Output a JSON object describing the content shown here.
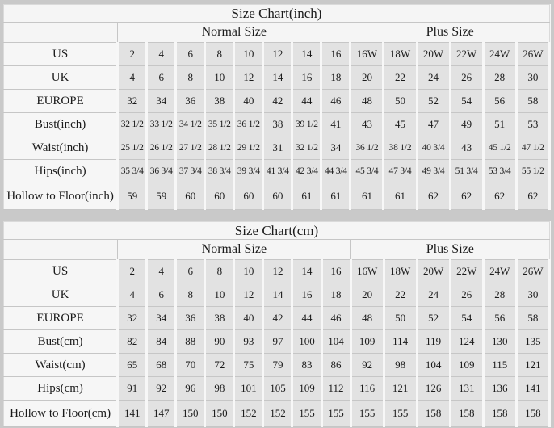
{
  "colors": {
    "page_background": "#c9c9c9",
    "table_background": "#f5f5f5",
    "data_cell_background": "#e2e2e2",
    "grid_line": "#c6c6c6",
    "text": "#1b1b1b"
  },
  "chart_data": [
    {
      "type": "table",
      "title": "Size Chart(inch)",
      "column_groups": [
        {
          "label": "Normal Size",
          "span": 8
        },
        {
          "label": "Plus Size",
          "span": 6
        }
      ],
      "rows": [
        {
          "label": "US",
          "normal": [
            "2",
            "4",
            "6",
            "8",
            "10",
            "12",
            "14",
            "16"
          ],
          "plus": [
            "16W",
            "18W",
            "20W",
            "22W",
            "24W",
            "26W"
          ]
        },
        {
          "label": "UK",
          "normal": [
            "4",
            "6",
            "8",
            "10",
            "12",
            "14",
            "16",
            "18"
          ],
          "plus": [
            "20",
            "22",
            "24",
            "26",
            "28",
            "30"
          ]
        },
        {
          "label": "EUROPE",
          "normal": [
            "32",
            "34",
            "36",
            "38",
            "40",
            "42",
            "44",
            "46"
          ],
          "plus": [
            "48",
            "50",
            "52",
            "54",
            "56",
            "58"
          ]
        },
        {
          "label": "Bust(inch)",
          "normal": [
            "32 1/2",
            "33 1/2",
            "34 1/2",
            "35 1/2",
            "36 1/2",
            "38",
            "39 1/2",
            "41"
          ],
          "plus": [
            "43",
            "45",
            "47",
            "49",
            "51",
            "53"
          ]
        },
        {
          "label": "Waist(inch)",
          "normal": [
            "25 1/2",
            "26 1/2",
            "27 1/2",
            "28 1/2",
            "29 1/2",
            "31",
            "32 1/2",
            "34"
          ],
          "plus": [
            "36 1/2",
            "38 1/2",
            "40 3/4",
            "43",
            "45 1/2",
            "47 1/2"
          ]
        },
        {
          "label": "Hips(inch)",
          "normal": [
            "35 3/4",
            "36 3/4",
            "37 3/4",
            "38 3/4",
            "39 3/4",
            "41 3/4",
            "42 3/4",
            "44 3/4"
          ],
          "plus": [
            "45 3/4",
            "47 3/4",
            "49 3/4",
            "51 3/4",
            "53 3/4",
            "55 1/2"
          ]
        },
        {
          "label": "Hollow to Floor(inch)",
          "normal": [
            "59",
            "59",
            "60",
            "60",
            "60",
            "60",
            "61",
            "61"
          ],
          "plus": [
            "61",
            "61",
            "62",
            "62",
            "62",
            "62"
          ]
        }
      ]
    },
    {
      "type": "table",
      "title": "Size Chart(cm)",
      "column_groups": [
        {
          "label": "Normal Size",
          "span": 8
        },
        {
          "label": "Plus Size",
          "span": 6
        }
      ],
      "rows": [
        {
          "label": "US",
          "normal": [
            "2",
            "4",
            "6",
            "8",
            "10",
            "12",
            "14",
            "16"
          ],
          "plus": [
            "16W",
            "18W",
            "20W",
            "22W",
            "24W",
            "26W"
          ]
        },
        {
          "label": "UK",
          "normal": [
            "4",
            "6",
            "8",
            "10",
            "12",
            "14",
            "16",
            "18"
          ],
          "plus": [
            "20",
            "22",
            "24",
            "26",
            "28",
            "30"
          ]
        },
        {
          "label": "EUROPE",
          "normal": [
            "32",
            "34",
            "36",
            "38",
            "40",
            "42",
            "44",
            "46"
          ],
          "plus": [
            "48",
            "50",
            "52",
            "54",
            "56",
            "58"
          ]
        },
        {
          "label": "Bust(cm)",
          "normal": [
            "82",
            "84",
            "88",
            "90",
            "93",
            "97",
            "100",
            "104"
          ],
          "plus": [
            "109",
            "114",
            "119",
            "124",
            "130",
            "135"
          ]
        },
        {
          "label": "Waist(cm)",
          "normal": [
            "65",
            "68",
            "70",
            "72",
            "75",
            "79",
            "83",
            "86"
          ],
          "plus": [
            "92",
            "98",
            "104",
            "109",
            "115",
            "121"
          ]
        },
        {
          "label": "Hips(cm)",
          "normal": [
            "91",
            "92",
            "96",
            "98",
            "101",
            "105",
            "109",
            "112"
          ],
          "plus": [
            "116",
            "121",
            "126",
            "131",
            "136",
            "141"
          ]
        },
        {
          "label": "Hollow to Floor(cm)",
          "normal": [
            "141",
            "147",
            "150",
            "150",
            "152",
            "152",
            "155",
            "155"
          ],
          "plus": [
            "155",
            "155",
            "158",
            "158",
            "158",
            "158"
          ]
        }
      ]
    }
  ]
}
